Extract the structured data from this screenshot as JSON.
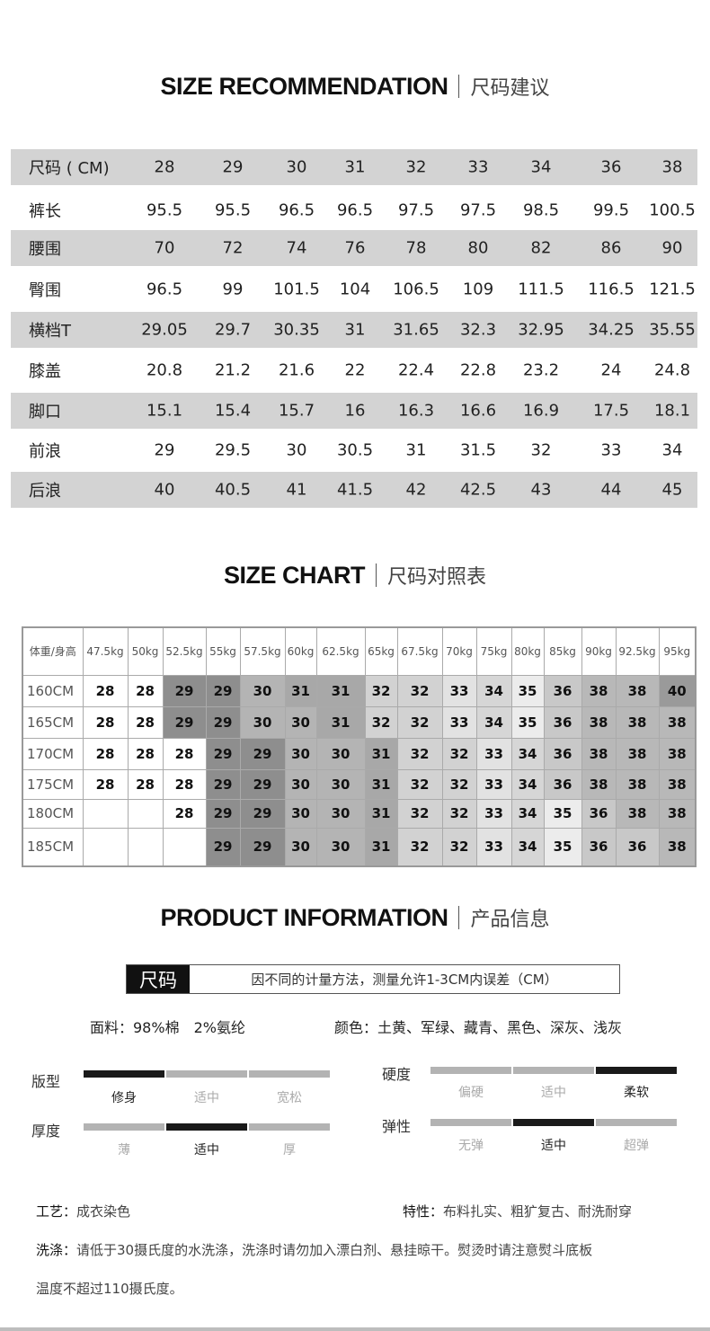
{
  "size_recommendation": {
    "title_en": "SIZE RECOMMENDATION",
    "title_cn": "尺码建议",
    "header": [
      "尺码 ( CM)",
      "28",
      "29",
      "30",
      "31",
      "32",
      "33",
      "34",
      "36",
      "38"
    ],
    "rows": [
      [
        "裤长",
        "95.5",
        "95.5",
        "96.5",
        "96.5",
        "97.5",
        "97.5",
        "98.5",
        "99.5",
        "100.5"
      ],
      [
        "腰围",
        "70",
        "72",
        "74",
        "76",
        "78",
        "80",
        "82",
        "86",
        "90"
      ],
      [
        "臀围",
        "96.5",
        "99",
        "101.5",
        "104",
        "106.5",
        "109",
        "111.5",
        "116.5",
        "121.5"
      ],
      [
        "横档T",
        "29.05",
        "29.7",
        "30.35",
        "31",
        "31.65",
        "32.3",
        "32.95",
        "34.25",
        "35.55"
      ],
      [
        "膝盖",
        "20.8",
        "21.2",
        "21.6",
        "22",
        "22.4",
        "22.8",
        "23.2",
        "24",
        "24.8"
      ],
      [
        "脚口",
        "15.1",
        "15.4",
        "15.7",
        "16",
        "16.3",
        "16.6",
        "16.9",
        "17.5",
        "18.1"
      ],
      [
        "前浪",
        "29",
        "29.5",
        "30",
        "30.5",
        "31",
        "31.5",
        "32",
        "33",
        "34"
      ],
      [
        "后浪",
        "40",
        "40.5",
        "41",
        "41.5",
        "42",
        "42.5",
        "43",
        "44",
        "45"
      ]
    ]
  },
  "size_chart": {
    "title_en": "SIZE CHART",
    "title_cn": "尺码对照表",
    "header": [
      "体重/身高",
      "47.5kg",
      "50kg",
      "52.5kg",
      "55kg",
      "57.5kg",
      "60kg",
      "62.5kg",
      "65kg",
      "67.5kg",
      "70kg",
      "75kg",
      "80kg",
      "85kg",
      "90kg",
      "92.5kg",
      "95kg"
    ],
    "rows": [
      [
        "160CM",
        "28",
        "28",
        "29",
        "29",
        "30",
        "31",
        "31",
        "32",
        "32",
        "33",
        "34",
        "35",
        "36",
        "38",
        "38",
        "40"
      ],
      [
        "165CM",
        "28",
        "28",
        "29",
        "29",
        "30",
        "30",
        "31",
        "32",
        "32",
        "33",
        "34",
        "35",
        "36",
        "38",
        "38",
        "38"
      ],
      [
        "170CM",
        "28",
        "28",
        "28",
        "29",
        "29",
        "30",
        "30",
        "31",
        "32",
        "32",
        "33",
        "34",
        "36",
        "38",
        "38",
        "38"
      ],
      [
        "175CM",
        "28",
        "28",
        "28",
        "29",
        "29",
        "30",
        "30",
        "31",
        "32",
        "32",
        "33",
        "34",
        "36",
        "38",
        "38",
        "38"
      ],
      [
        "180CM",
        "",
        "",
        "28",
        "29",
        "29",
        "30",
        "30",
        "31",
        "32",
        "32",
        "33",
        "34",
        "35",
        "36",
        "38",
        "38"
      ],
      [
        "185CM",
        "",
        "",
        "",
        "29",
        "29",
        "30",
        "30",
        "31",
        "32",
        "32",
        "33",
        "34",
        "35",
        "36",
        "36",
        "38"
      ]
    ],
    "shades": {
      "28": "#ffffff",
      "29": "#8e8e8e",
      "30": "#b4b4b4",
      "31": "#a8a8a8",
      "32": "#d2d2d2",
      "33": "#e2e2e2",
      "34": "#d6d6d6",
      "35": "#ececec",
      "36": "#c8c8c8",
      "38": "#b8b8b8",
      "40": "#9a9a9a"
    }
  },
  "product_info": {
    "title_en": "PRODUCT INFORMATION",
    "title_cn": "产品信息",
    "note_key": "尺码",
    "note_text": "因不同的计量方法，测量允许1-3CM内误差（CM）",
    "fabric": "面料：98%棉　2%氨纶",
    "colors": "颜色：土黄、军绿、藏青、黑色、深灰、浅灰",
    "scales": [
      {
        "label": "版型",
        "options": [
          "修身",
          "适中",
          "宽松"
        ],
        "selected": 0
      },
      {
        "label": "厚度",
        "options": [
          "薄",
          "适中",
          "厚"
        ],
        "selected": 1
      },
      {
        "label": "硬度",
        "options": [
          "偏硬",
          "适中",
          "柔软"
        ],
        "selected": 2
      },
      {
        "label": "弹性",
        "options": [
          "无弹",
          "适中",
          "超弹"
        ],
        "selected": 1
      }
    ],
    "craft_key": "工艺：",
    "craft": "成衣染色",
    "feature_key": "特性：",
    "feature": "布料扎实、粗犷复古、耐洗耐穿",
    "wash_key": "洗涤：",
    "wash_1": "请低于30摄氏度的水洗涤，洗涤时请勿加入漂白剂、悬挂晾干。熨烫时请注意熨斗底板",
    "wash_2": "温度不超过110摄氏度。"
  }
}
